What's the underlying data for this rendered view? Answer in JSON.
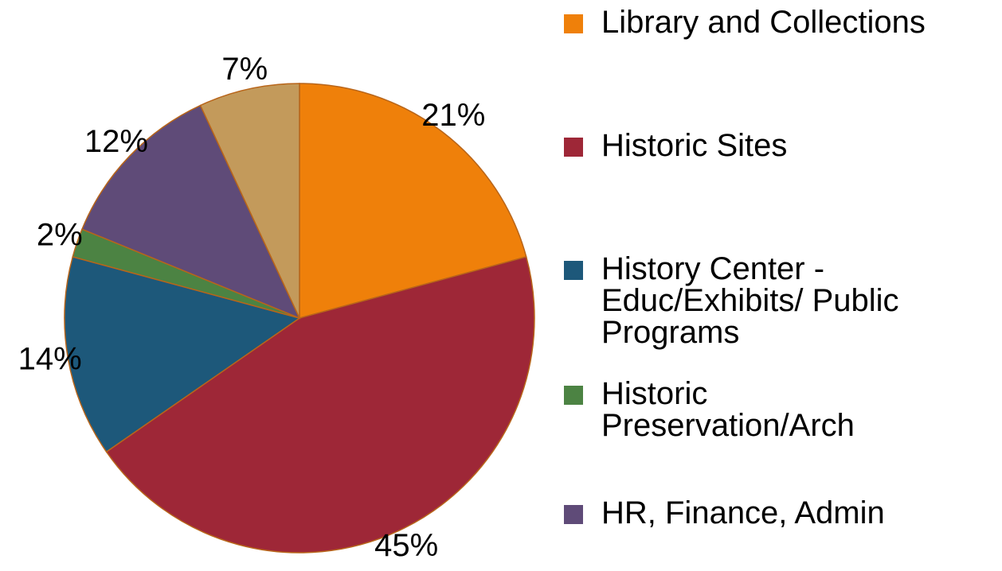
{
  "chart_data": {
    "type": "pie",
    "categories": [
      "Library and Collections",
      "Historic Sites",
      "History Center - Educ/Exhibits/ Public Programs",
      "Historic Preservation/Arch",
      "HR, Finance, Admin",
      null
    ],
    "values": [
      21,
      45,
      14,
      2,
      12,
      7
    ],
    "value_labels": [
      "21%",
      "45%",
      "14%",
      "2%",
      "12%",
      "7%"
    ],
    "colors": [
      "#ef800a",
      "#9e2737",
      "#1d587a",
      "#4c8343",
      "#5f4b78",
      "#c39a5b"
    ],
    "legend": "right"
  }
}
